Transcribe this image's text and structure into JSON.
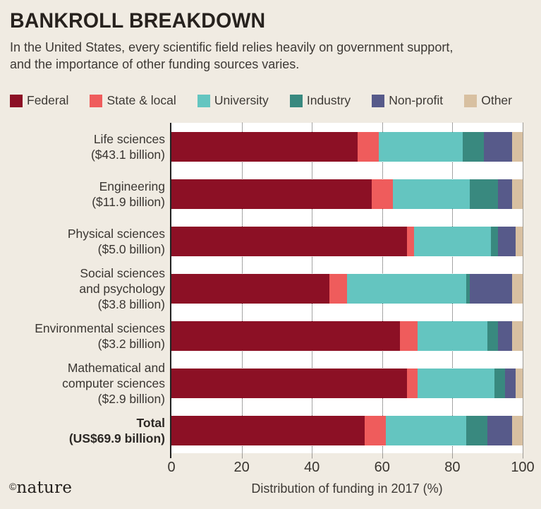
{
  "header": {
    "title": "BANKROLL BREAKDOWN",
    "subtitle": "In the United States, every scientific field relies heavily on government support, and the importance of other funding sources varies."
  },
  "footer": {
    "credit_symbol": "©",
    "credit_name": "nature"
  },
  "colors": {
    "background": "#f0ebe2",
    "plot_background": "#ffffff",
    "gridline": "#4a4a4a",
    "axis": "#222222",
    "title_text": "#27221e",
    "body_text": "#3d3935"
  },
  "chart_data": {
    "type": "bar",
    "stacked": true,
    "orientation": "horizontal",
    "title": "BANKROLL BREAKDOWN",
    "xlabel": "Distribution of funding in 2017 (%)",
    "xlim": [
      0,
      100
    ],
    "xticks": [
      0,
      20,
      40,
      60,
      80,
      100
    ],
    "grid": "vertical dotted",
    "legend_position": "top",
    "categories": [
      {
        "lines": [
          "Life sciences",
          "($43.1 billion)"
        ],
        "bold": false
      },
      {
        "lines": [
          "Engineering",
          "($11.9 billion)"
        ],
        "bold": false
      },
      {
        "lines": [
          "Physical sciences",
          "($5.0 billion)"
        ],
        "bold": false
      },
      {
        "lines": [
          "Social sciences",
          "and psychology",
          "($3.8 billion)"
        ],
        "bold": false
      },
      {
        "lines": [
          "Environmental sciences",
          "($3.2 billion)"
        ],
        "bold": false
      },
      {
        "lines": [
          "Mathematical and",
          "computer sciences",
          "($2.9 billion)"
        ],
        "bold": false
      },
      {
        "lines": [
          "Total",
          "(US$69.9 billion)"
        ],
        "bold": true
      }
    ],
    "series": [
      {
        "name": "Federal",
        "color": "#8c1025",
        "values": [
          53,
          57,
          67,
          45,
          65,
          67,
          55
        ]
      },
      {
        "name": "State & local",
        "color": "#ef5c5c",
        "values": [
          6,
          6,
          2,
          5,
          5,
          3,
          6
        ]
      },
      {
        "name": "University",
        "color": "#64c5c0",
        "values": [
          24,
          22,
          22,
          34,
          20,
          22,
          23
        ]
      },
      {
        "name": "Industry",
        "color": "#39897f",
        "values": [
          6,
          8,
          2,
          1,
          3,
          3,
          6
        ]
      },
      {
        "name": "Non-profit",
        "color": "#575a8a",
        "values": [
          8,
          4,
          5,
          12,
          4,
          3,
          7
        ]
      },
      {
        "name": "Other",
        "color": "#d8c0a1",
        "values": [
          3,
          3,
          2,
          3,
          3,
          2,
          3
        ]
      }
    ]
  }
}
